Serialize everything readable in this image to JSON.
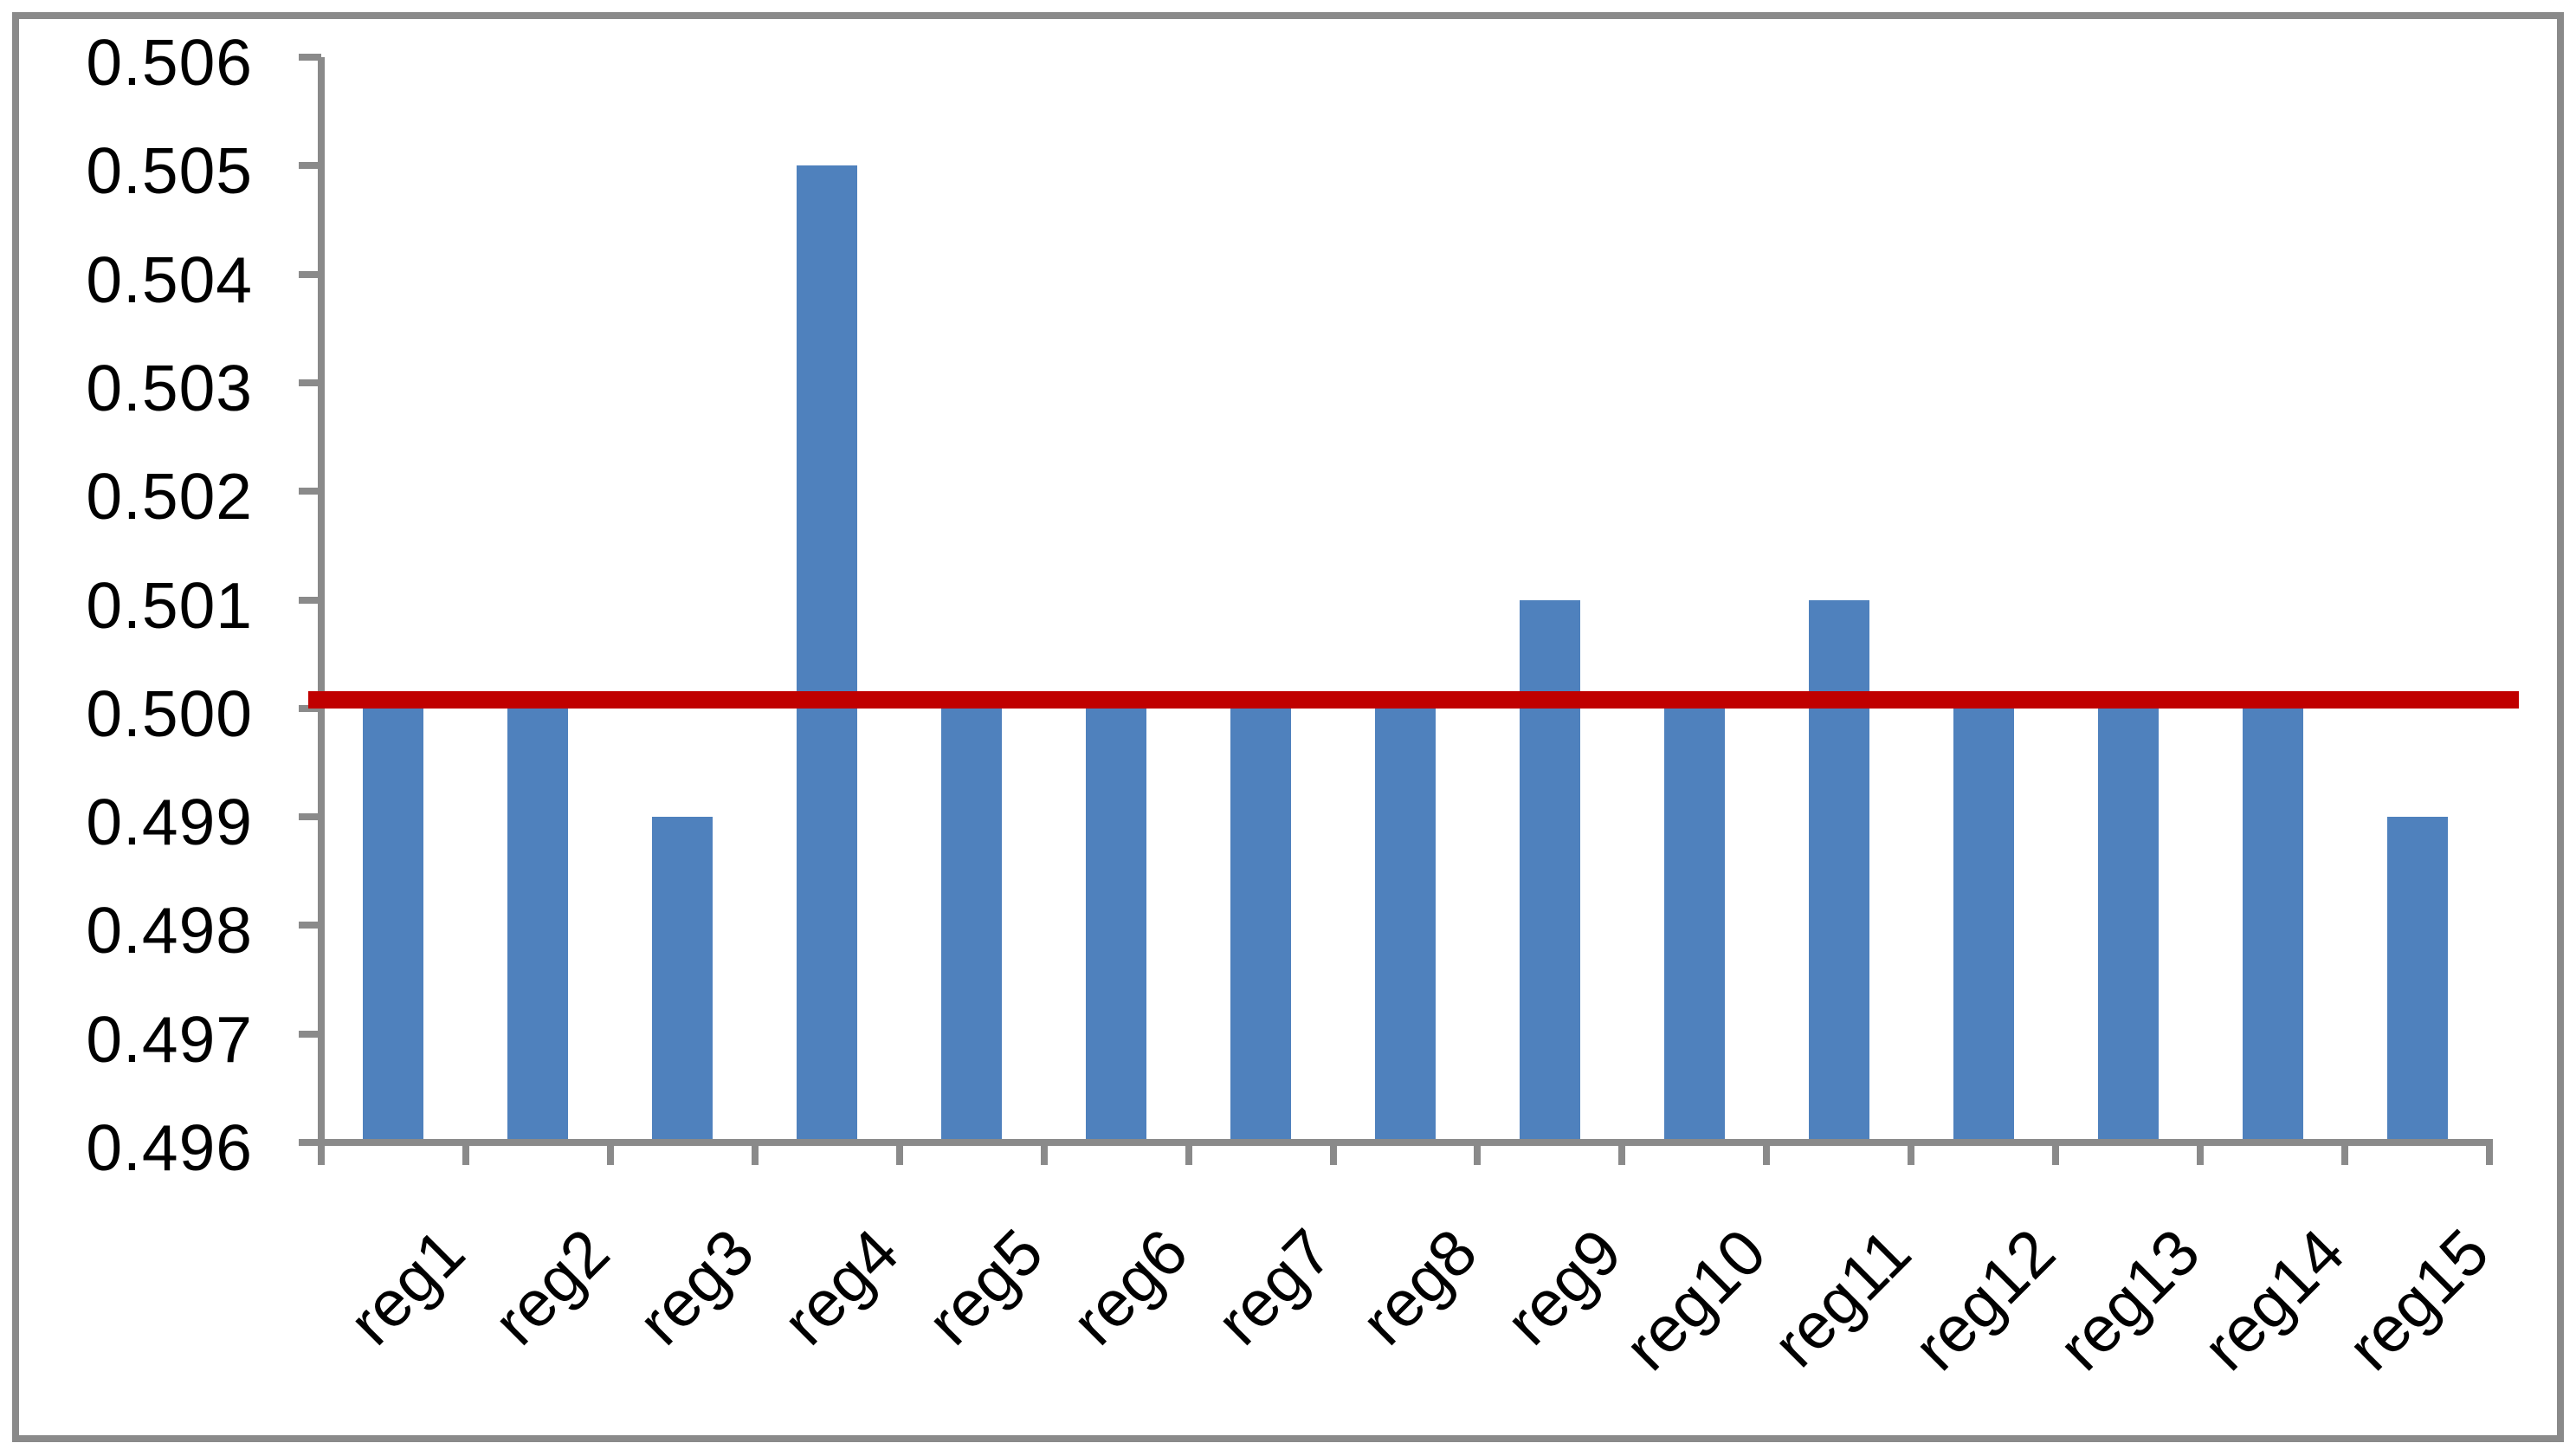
{
  "chart_data": {
    "type": "bar",
    "title": "",
    "xlabel": "",
    "ylabel": "",
    "categories": [
      "reg1",
      "reg2",
      "reg3",
      "reg4",
      "reg5",
      "reg6",
      "reg7",
      "reg8",
      "reg9",
      "reg10",
      "reg11",
      "reg12",
      "reg13",
      "reg14",
      "reg15"
    ],
    "series": [
      {
        "name": "region-values",
        "type": "bar",
        "color": "#4F81BD",
        "values": [
          0.5,
          0.5,
          0.499,
          0.505,
          0.5,
          0.5,
          0.5,
          0.5,
          0.501,
          0.5,
          0.501,
          0.5,
          0.5,
          0.5,
          0.499
        ]
      }
    ],
    "reference_line": {
      "name": "reference-line",
      "type": "line",
      "value": 0.5001,
      "color": "#C00000"
    },
    "y_axis": {
      "min": 0.496,
      "max": 0.506,
      "tick_step": 0.001,
      "tick_labels": [
        "0.506",
        "0.505",
        "0.504",
        "0.503",
        "0.502",
        "0.501",
        "0.500",
        "0.499",
        "0.498",
        "0.497",
        "0.496"
      ]
    },
    "grid": false,
    "legend": false,
    "colors": {
      "bar": "#4F81BD",
      "reference_line": "#C00000",
      "axis": "#8A8A8A",
      "figure_border": "#8A8A8A",
      "background": "#FFFFFF",
      "text": "#000000"
    }
  }
}
